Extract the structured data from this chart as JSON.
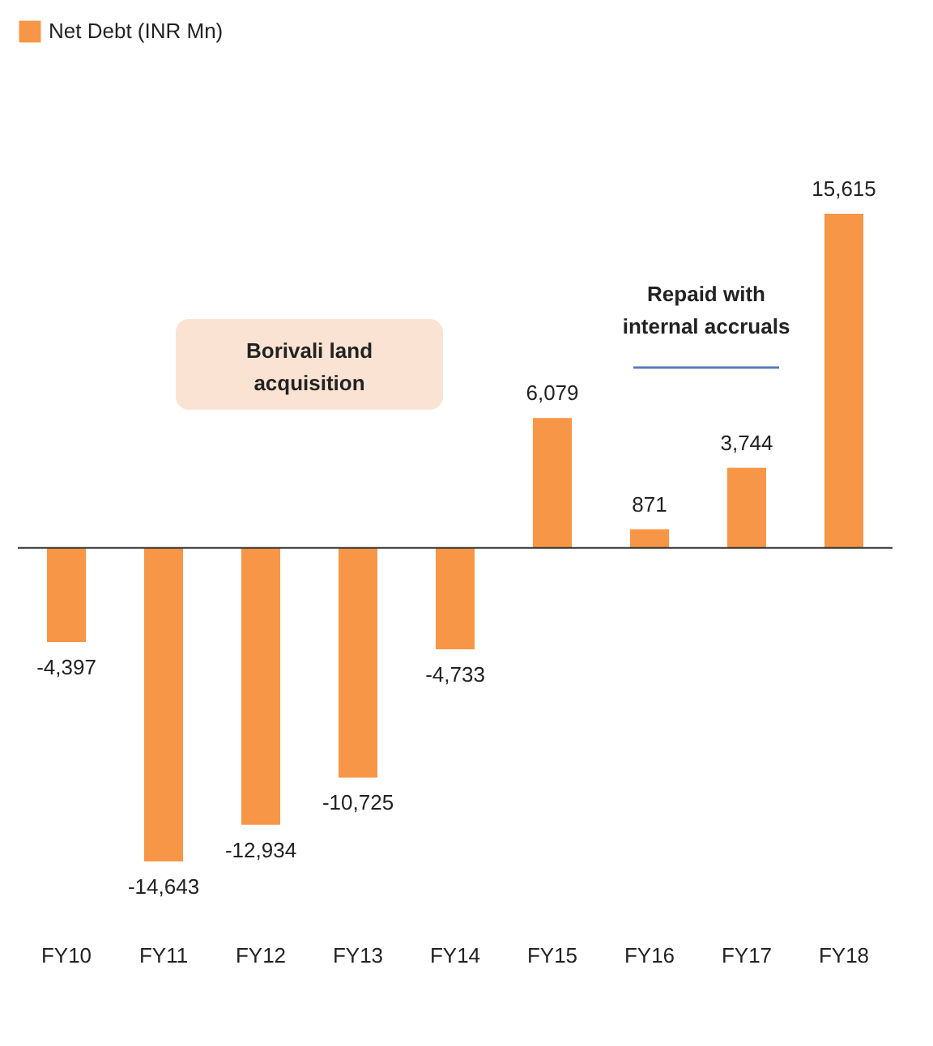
{
  "chart_data": {
    "type": "bar",
    "categories": [
      "FY10",
      "FY11",
      "FY12",
      "FY13",
      "FY14",
      "FY15",
      "FY16",
      "FY17",
      "FY18"
    ],
    "series": [
      {
        "name": "Net Debt (INR Mn)",
        "color": "#f79646",
        "values": [
          -4397,
          -14643,
          -12934,
          -10725,
          -4733,
          6079,
          871,
          3744,
          15615
        ],
        "value_labels": [
          "-4,397",
          "-14,643",
          "-12,934",
          "-10,725",
          "-4,733",
          "6,079",
          "871",
          "3,744",
          "15,615"
        ]
      }
    ],
    "legend": "top left",
    "grid": false,
    "annotations": [
      "Borivali land acquisition",
      "Repaid with internal accruals"
    ]
  }
}
